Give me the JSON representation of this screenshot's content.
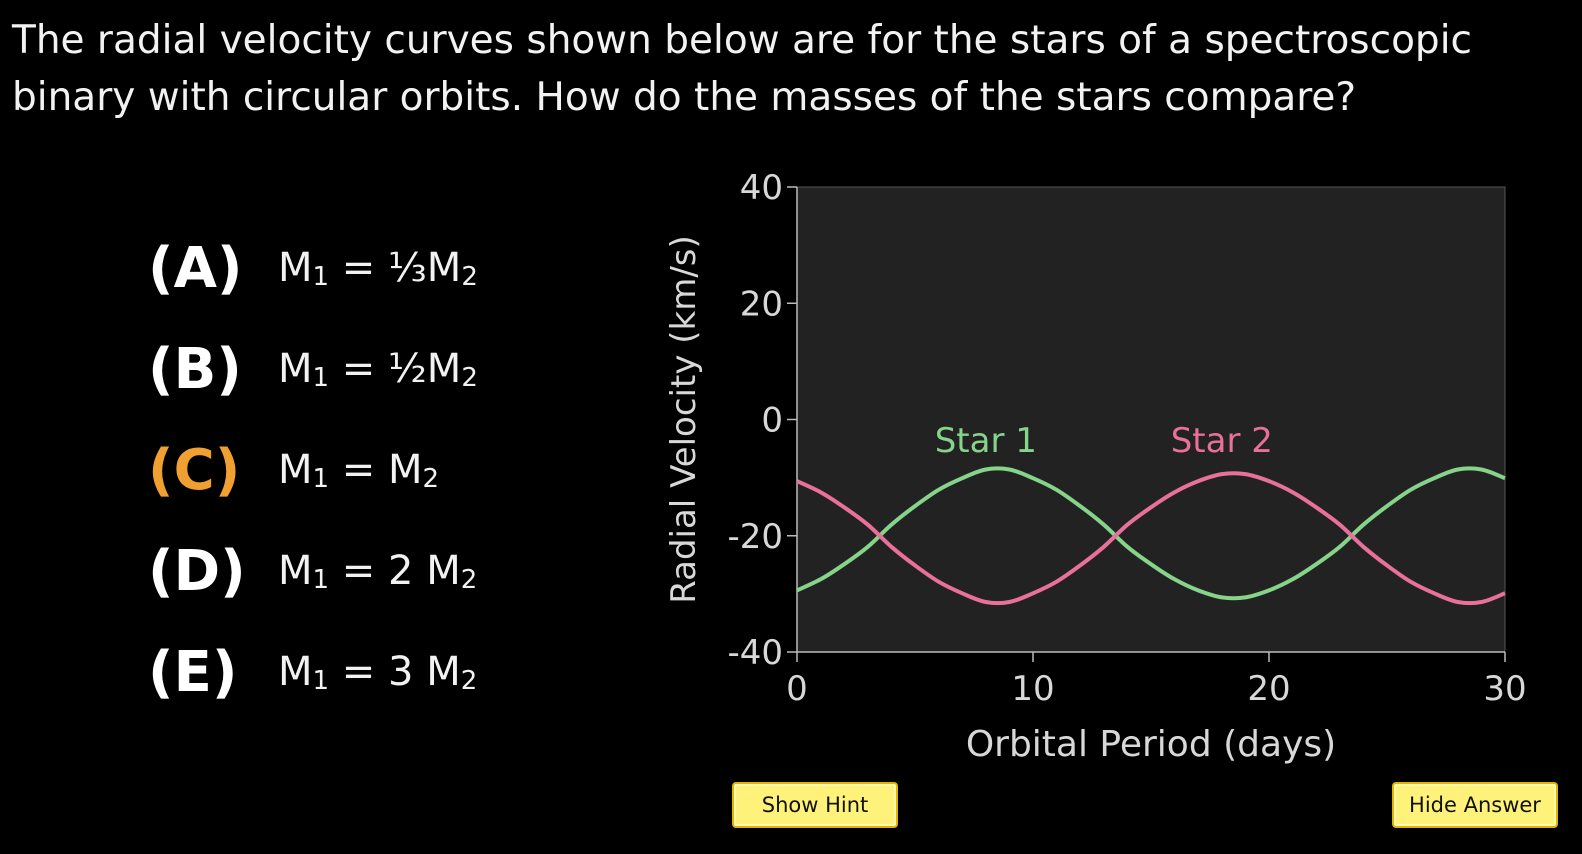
{
  "question": "The radial velocity curves shown below are for the stars of a spectroscopic binary with circular orbits. How do the masses of the stars compare?",
  "options": [
    {
      "letter": "(A)",
      "m1": "M",
      "sub1": "1",
      "relation": " = ",
      "coef": "⅓",
      "m2": "M",
      "sub2": "2",
      "correct": false
    },
    {
      "letter": "(B)",
      "m1": "M",
      "sub1": "1",
      "relation": " = ",
      "coef": "½",
      "m2": "M",
      "sub2": "2",
      "correct": false
    },
    {
      "letter": "(C)",
      "m1": "M",
      "sub1": "1",
      "relation": " = ",
      "coef": "",
      "m2": "M",
      "sub2": "2",
      "correct": true
    },
    {
      "letter": "(D)",
      "m1": "M",
      "sub1": "1",
      "relation": " = ",
      "coef": "2 ",
      "m2": "M",
      "sub2": "2",
      "correct": false
    },
    {
      "letter": "(E)",
      "m1": "M",
      "sub1": "1",
      "relation": " = ",
      "coef": "3 ",
      "m2": "M",
      "sub2": "2",
      "correct": false
    }
  ],
  "colors": {
    "correct_option": "#f0a030",
    "star1": "#86d38a",
    "star2": "#e8709a",
    "plot_bg": "#222222",
    "button_bg": "#fff27a"
  },
  "buttons": {
    "hint_label": "Show Hint",
    "answer_label": "Hide Answer"
  },
  "chart_data": {
    "type": "line",
    "xlabel": "Orbital Period (days)",
    "ylabel": "Radial Velocity (km/s)",
    "xlim": [
      0,
      30
    ],
    "ylim": [
      -40,
      40
    ],
    "xticks": [
      0,
      10,
      20,
      30
    ],
    "yticks": [
      40,
      20,
      0,
      -20,
      -40
    ],
    "grid": false,
    "legend": "labels placed at curve peaks",
    "series": [
      {
        "name": "Star 1",
        "color": "#86d38a",
        "x": [
          0,
          1,
          2,
          3,
          4,
          5,
          6,
          7,
          8,
          9,
          10,
          11,
          12,
          13,
          14,
          15,
          16,
          17,
          18,
          19,
          20,
          21,
          22,
          23,
          24,
          25,
          26,
          27,
          28,
          29,
          30
        ],
        "y": [
          -29.4,
          -27.5,
          -24.9,
          -21.9,
          -18.1,
          -14.9,
          -12.1,
          -10.1,
          -8.6,
          -8.6,
          -10.1,
          -12.1,
          -14.9,
          -18.1,
          -21.9,
          -24.9,
          -27.5,
          -29.4,
          -30.6,
          -30.6,
          -29.4,
          -27.5,
          -24.9,
          -21.9,
          -18.1,
          -14.9,
          -12.1,
          -10.1,
          -8.6,
          -8.6,
          -10.1
        ]
      },
      {
        "name": "Star 2",
        "color": "#e8709a",
        "x": [
          0,
          1,
          2,
          3,
          4,
          5,
          6,
          7,
          8,
          9,
          10,
          11,
          12,
          13,
          14,
          15,
          16,
          17,
          18,
          19,
          20,
          21,
          22,
          23,
          24,
          25,
          26,
          27,
          28,
          29,
          30
        ],
        "y": [
          -10.6,
          -12.5,
          -15.1,
          -18.1,
          -21.9,
          -25.1,
          -27.9,
          -29.9,
          -31.4,
          -31.4,
          -29.9,
          -27.9,
          -25.1,
          -21.9,
          -18.1,
          -15.1,
          -12.5,
          -10.6,
          -9.4,
          -9.4,
          -10.6,
          -12.5,
          -15.1,
          -18.1,
          -21.9,
          -25.1,
          -27.9,
          -29.9,
          -31.4,
          -31.4,
          -29.9
        ]
      }
    ],
    "annotations": [
      {
        "text": "Star 1",
        "x": 8,
        "y": -8
      },
      {
        "text": "Star 2",
        "x": 18,
        "y": -8
      }
    ]
  }
}
